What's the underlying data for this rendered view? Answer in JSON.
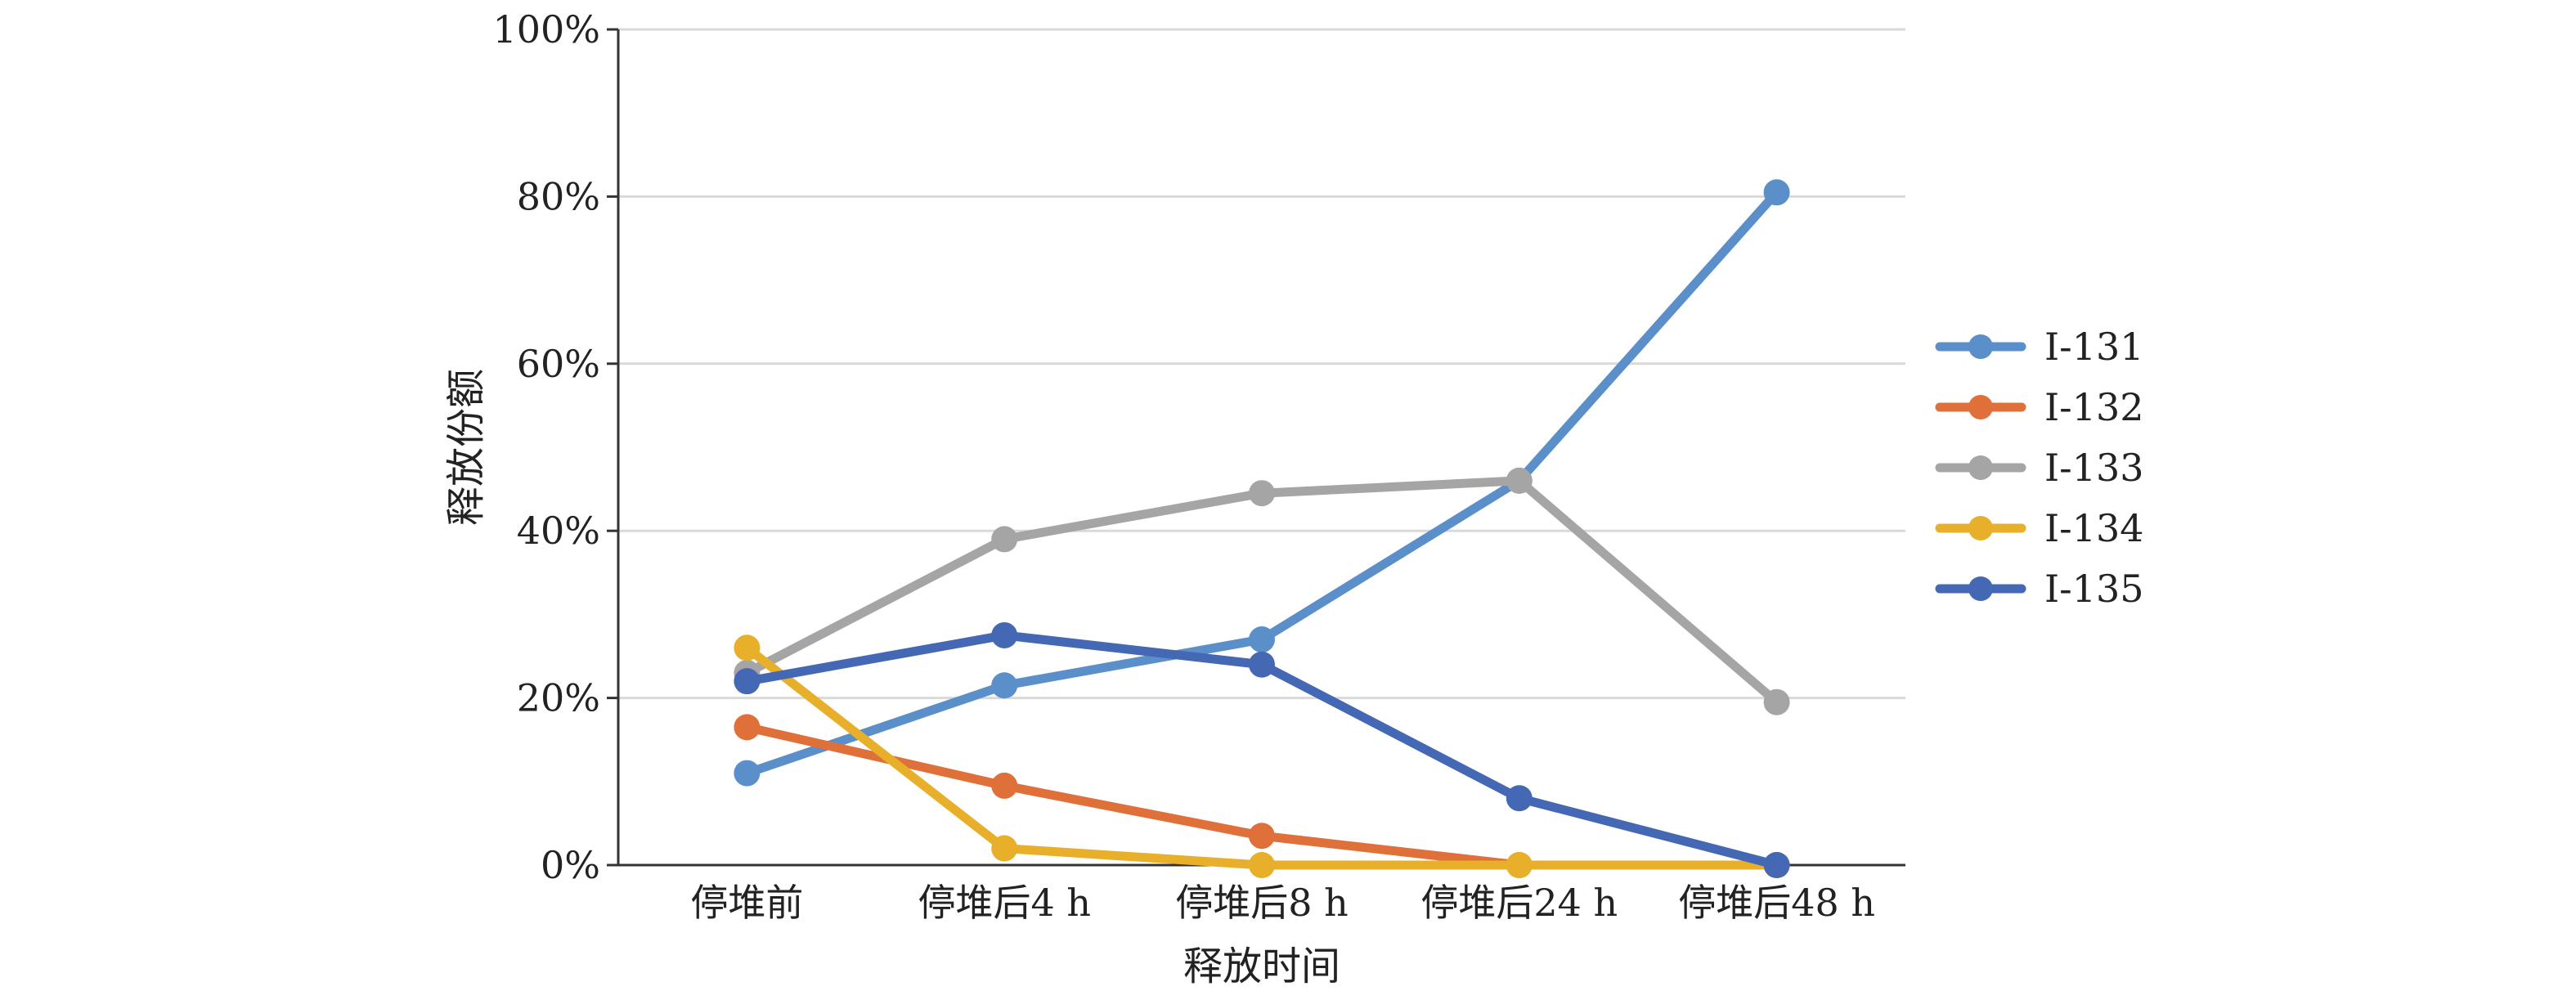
{
  "chart_data": {
    "type": "line",
    "title": "",
    "xlabel": "释放时间",
    "ylabel": "释放份额",
    "categories": [
      "停堆前",
      "停堆后4 h",
      "停堆后8 h",
      "停堆后24 h",
      "停堆后48 h"
    ],
    "ylim": [
      0,
      100
    ],
    "yticks": [
      0,
      20,
      40,
      60,
      80,
      100
    ],
    "ytick_labels": [
      "0%",
      "20%",
      "40%",
      "60%",
      "80%",
      "100%"
    ],
    "grid": true,
    "legend_position": "right",
    "series": [
      {
        "name": "I-131",
        "color": "#5b8fc9",
        "values": [
          11,
          21.5,
          27,
          46,
          80.5
        ]
      },
      {
        "name": "I-132",
        "color": "#e0703a",
        "values": [
          16.5,
          9.5,
          3.5,
          0,
          0
        ]
      },
      {
        "name": "I-133",
        "color": "#a5a5a5",
        "values": [
          23,
          39,
          44.5,
          46,
          19.5
        ]
      },
      {
        "name": "I-134",
        "color": "#e8b02a",
        "values": [
          26,
          2,
          0,
          0,
          0
        ]
      },
      {
        "name": "I-135",
        "color": "#4468b4",
        "values": [
          22,
          27.5,
          24,
          8,
          0
        ]
      }
    ]
  }
}
